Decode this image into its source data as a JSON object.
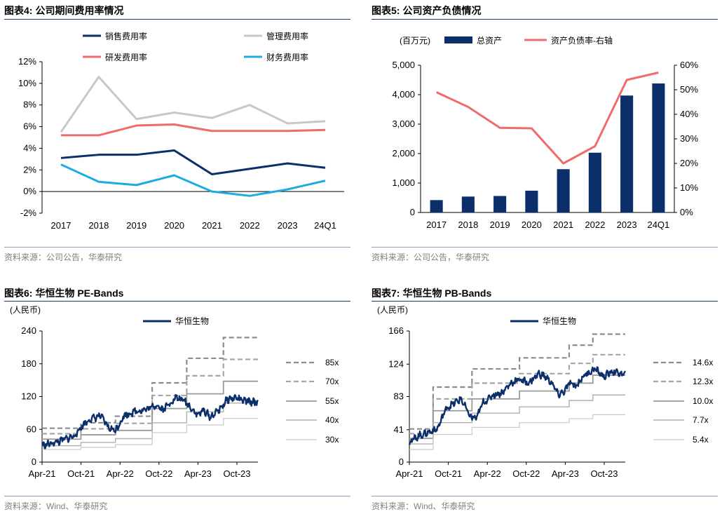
{
  "charts": [
    {
      "fig_label": "图表4:",
      "title": "公司期间费用率情况",
      "source": "资料来源：公司公告，华泰研究",
      "chart_data": {
        "type": "line",
        "categories": [
          "2017",
          "2018",
          "2019",
          "2020",
          "2021",
          "2022",
          "2023",
          "24Q1"
        ],
        "y_ticks": [
          "12%",
          "10%",
          "8%",
          "6%",
          "4%",
          "2%",
          "0%",
          "-2%"
        ],
        "ylim": [
          -2,
          12
        ],
        "series": [
          {
            "name": "销售费用率",
            "color": "#0b2f6b",
            "values": [
              3.1,
              3.4,
              3.4,
              3.8,
              1.6,
              2.1,
              2.6,
              2.2
            ]
          },
          {
            "name": "管理费用率",
            "color": "#c8c8c8",
            "values": [
              5.5,
              10.6,
              6.7,
              7.3,
              6.8,
              8.0,
              6.3,
              6.5
            ]
          },
          {
            "name": "研发费用率",
            "color": "#f06b6b",
            "values": [
              5.2,
              5.2,
              6.1,
              6.2,
              5.6,
              5.6,
              5.6,
              5.7
            ]
          },
          {
            "name": "财务费用率",
            "color": "#1aace3",
            "values": [
              2.5,
              0.9,
              0.6,
              1.5,
              0.0,
              -0.4,
              0.2,
              1.0
            ]
          }
        ]
      }
    },
    {
      "fig_label": "图表5:",
      "title": "公司资产负债情况",
      "source": "资料来源：公司公告，华泰研究",
      "unit_label": "(百万元)",
      "chart_data": {
        "type": "bar",
        "categories": [
          "2017",
          "2018",
          "2019",
          "2020",
          "2021",
          "2022",
          "2023",
          "24Q1"
        ],
        "left_ticks": [
          "5,000",
          "4,000",
          "3,000",
          "2,000",
          "1,000",
          "0"
        ],
        "right_ticks": [
          "60%",
          "50%",
          "40%",
          "30%",
          "20%",
          "10%",
          "0%"
        ],
        "ylim_left": [
          0,
          5000
        ],
        "ylim_right": [
          0,
          60
        ],
        "series": [
          {
            "name": "总资产",
            "kind": "bar",
            "axis": "left",
            "color": "#0b2f6b",
            "values": [
              420,
              540,
              560,
              740,
              1470,
              2030,
              3970,
              4380
            ]
          },
          {
            "name": "资产负债率-右轴",
            "kind": "line",
            "axis": "right",
            "color": "#f06b6b",
            "values": [
              49,
              43,
              34.5,
              34.3,
              20,
              27,
              54,
              57
            ]
          }
        ]
      }
    },
    {
      "fig_label": "图表6:",
      "title": "华恒生物 PE-Bands",
      "source": "资料来源：Wind、华泰研究",
      "unit_label": "(人民币)",
      "chart_data": {
        "type": "line",
        "x_ticks": [
          "Apr-21",
          "Oct-21",
          "Apr-22",
          "Oct-22",
          "Apr-23",
          "Oct-23"
        ],
        "y_ticks": [
          "240",
          "180",
          "120",
          "60",
          "0"
        ],
        "ylim": [
          0,
          240
        ],
        "price_name": "华恒生物",
        "price_color": "#0b2f6b",
        "price_anchors": [
          [
            0,
            30
          ],
          [
            0.03,
            33
          ],
          [
            0.08,
            38
          ],
          [
            0.15,
            48
          ],
          [
            0.19,
            68
          ],
          [
            0.22,
            78
          ],
          [
            0.27,
            85
          ],
          [
            0.31,
            62
          ],
          [
            0.34,
            58
          ],
          [
            0.38,
            85
          ],
          [
            0.43,
            93
          ],
          [
            0.49,
            97
          ],
          [
            0.53,
            105
          ],
          [
            0.56,
            96
          ],
          [
            0.62,
            118
          ],
          [
            0.66,
            112
          ],
          [
            0.68,
            104
          ],
          [
            0.72,
            86
          ],
          [
            0.75,
            95
          ],
          [
            0.78,
            82
          ],
          [
            0.82,
            96
          ],
          [
            0.86,
            115
          ],
          [
            0.9,
            118
          ],
          [
            0.93,
            112
          ],
          [
            1.0,
            109
          ]
        ],
        "band_step_t": [
          0.18,
          0.34,
          0.51,
          0.67,
          0.84
        ],
        "bands": [
          {
            "label": "85x",
            "color": "#8c8c8c",
            "dash": true,
            "width": 2.2,
            "values": [
              62,
              72,
              84,
              145,
              190,
              228
            ]
          },
          {
            "label": "70x",
            "color": "#a6a6a6",
            "dash": true,
            "width": 2.2,
            "values": [
              52,
              61,
              71,
              122,
              158,
              188
            ]
          },
          {
            "label": "55x",
            "color": "#9a9a9a",
            "dash": false,
            "width": 1.8,
            "values": [
              42,
              50,
              58,
              98,
              125,
              148
            ]
          },
          {
            "label": "40x",
            "color": "#b0b0b0",
            "dash": false,
            "width": 1.4,
            "values": [
              30,
              36,
              43,
              72,
              92,
              108
            ]
          },
          {
            "label": "30x",
            "color": "#c8c8c8",
            "dash": false,
            "width": 1.2,
            "values": [
              23,
              27,
              32,
              54,
              68,
              80
            ]
          }
        ]
      }
    },
    {
      "fig_label": "图表7:",
      "title": "华恒生物 PB-Bands",
      "source": "资料来源：Wind、华泰研究",
      "unit_label": "(人民币)",
      "chart_data": {
        "type": "line",
        "x_ticks": [
          "Apr-21",
          "Oct-21",
          "Apr-22",
          "Oct-22",
          "Apr-23",
          "Oct-23"
        ],
        "y_ticks": [
          "166",
          "124",
          "83",
          "41",
          "0"
        ],
        "ylim": [
          0,
          166
        ],
        "price_name": "华恒生物",
        "price_color": "#0b2f6b",
        "price_anchors": [
          [
            0,
            25
          ],
          [
            0.04,
            33
          ],
          [
            0.09,
            38
          ],
          [
            0.13,
            42
          ],
          [
            0.17,
            68
          ],
          [
            0.21,
            75
          ],
          [
            0.24,
            80
          ],
          [
            0.28,
            58
          ],
          [
            0.31,
            55
          ],
          [
            0.34,
            75
          ],
          [
            0.39,
            85
          ],
          [
            0.43,
            88
          ],
          [
            0.47,
            100
          ],
          [
            0.51,
            105
          ],
          [
            0.55,
            100
          ],
          [
            0.6,
            112
          ],
          [
            0.63,
            108
          ],
          [
            0.66,
            100
          ],
          [
            0.69,
            85
          ],
          [
            0.72,
            90
          ],
          [
            0.74,
            100
          ],
          [
            0.77,
            96
          ],
          [
            0.81,
            110
          ],
          [
            0.86,
            118
          ],
          [
            0.9,
            108
          ],
          [
            0.94,
            115
          ],
          [
            1.0,
            110
          ]
        ],
        "band_step_t": [
          0.11,
          0.29,
          0.51,
          0.74,
          0.85
        ],
        "bands": [
          {
            "label": "14.6x",
            "color": "#8c8c8c",
            "dash": true,
            "width": 2.2,
            "values": [
              42,
              95,
              118,
              132,
              148,
              162
            ]
          },
          {
            "label": "12.3x",
            "color": "#a6a6a6",
            "dash": true,
            "width": 2.2,
            "values": [
              36,
              80,
              100,
              112,
              125,
              136
            ]
          },
          {
            "label": "10.0x",
            "color": "#9a9a9a",
            "dash": false,
            "width": 1.8,
            "values": [
              30,
              65,
              80,
              90,
              100,
              110
            ]
          },
          {
            "label": "7.7x",
            "color": "#b0b0b0",
            "dash": false,
            "width": 1.4,
            "values": [
              23,
              50,
              62,
              70,
              78,
              85
            ]
          },
          {
            "label": "5.4x",
            "color": "#c8c8c8",
            "dash": false,
            "width": 1.2,
            "values": [
              16,
              35,
              44,
              50,
              55,
              60
            ]
          }
        ]
      }
    }
  ]
}
